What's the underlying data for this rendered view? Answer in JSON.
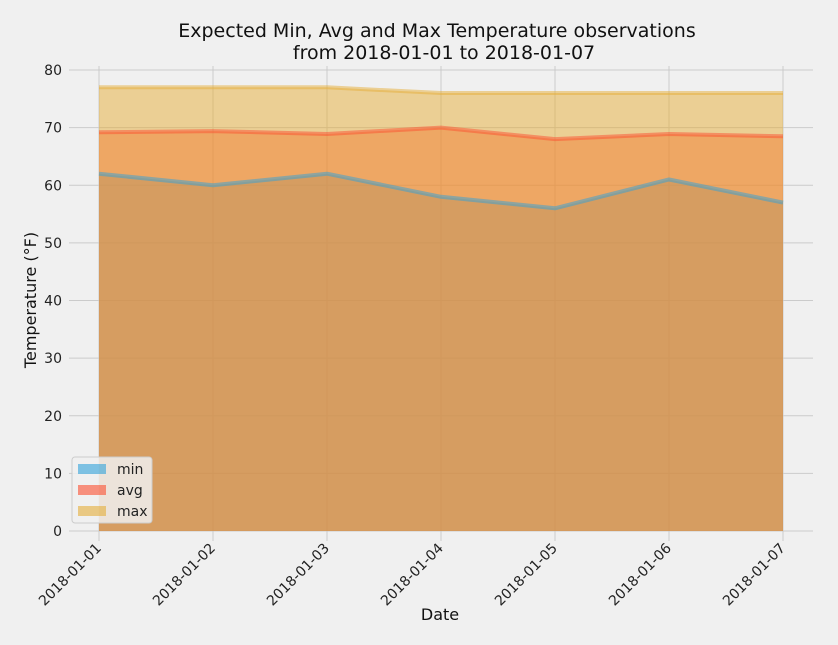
{
  "chart_data": {
    "type": "area",
    "title_line1": "Expected Min, Avg and Max Temperature observations",
    "title_line2": "from 2018-01-01 to 2018-01-07",
    "xlabel": "Date",
    "ylabel": "Temperature (°F)",
    "categories": [
      "2018-01-01",
      "2018-01-02",
      "2018-01-03",
      "2018-01-04",
      "2018-01-05",
      "2018-01-06",
      "2018-01-07"
    ],
    "ylim": [
      0,
      80
    ],
    "yticks": [
      0,
      10,
      20,
      30,
      40,
      50,
      60,
      70,
      80
    ],
    "grid": true,
    "stacked": false,
    "legend_position": "lower-left",
    "series": [
      {
        "name": "min",
        "color": "#30a2da",
        "values": [
          62.0,
          60.0,
          62.0,
          58.0,
          56.0,
          61.0,
          57.0
        ]
      },
      {
        "name": "avg",
        "color": "#fc4f30",
        "values": [
          69.2,
          69.4,
          68.9,
          70.0,
          68.0,
          68.9,
          68.5
        ]
      },
      {
        "name": "max",
        "color": "#e5ae38",
        "values": [
          77.0,
          77.0,
          77.0,
          76.0,
          76.0,
          76.0,
          76.0
        ]
      }
    ]
  }
}
